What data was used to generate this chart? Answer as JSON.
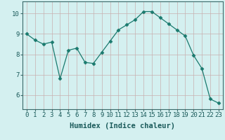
{
  "x": [
    0,
    1,
    2,
    3,
    4,
    5,
    6,
    7,
    8,
    9,
    10,
    11,
    12,
    13,
    14,
    15,
    16,
    17,
    18,
    19,
    20,
    21,
    22,
    23
  ],
  "y": [
    9.0,
    8.7,
    8.5,
    8.6,
    6.8,
    8.2,
    8.3,
    7.6,
    7.55,
    8.1,
    8.65,
    9.2,
    9.45,
    9.7,
    10.1,
    10.1,
    9.8,
    9.5,
    9.2,
    8.9,
    7.95,
    7.3,
    5.8,
    5.6
  ],
  "line_color": "#1a7a6e",
  "marker": "D",
  "marker_size": 2.5,
  "grid_color": "#c8b0b0",
  "xlabel": "Humidex (Indice chaleur)",
  "xlim": [
    -0.5,
    23.5
  ],
  "ylim": [
    5.3,
    10.6
  ],
  "yticks": [
    6,
    7,
    8,
    9,
    10
  ],
  "xticks": [
    0,
    1,
    2,
    3,
    4,
    5,
    6,
    7,
    8,
    9,
    10,
    11,
    12,
    13,
    14,
    15,
    16,
    17,
    18,
    19,
    20,
    21,
    22,
    23
  ],
  "xlabel_fontsize": 7.5,
  "tick_fontsize": 6.5,
  "axis_bg_color": "#d4f0f0",
  "fig_bg_color": "#d4f0f0"
}
